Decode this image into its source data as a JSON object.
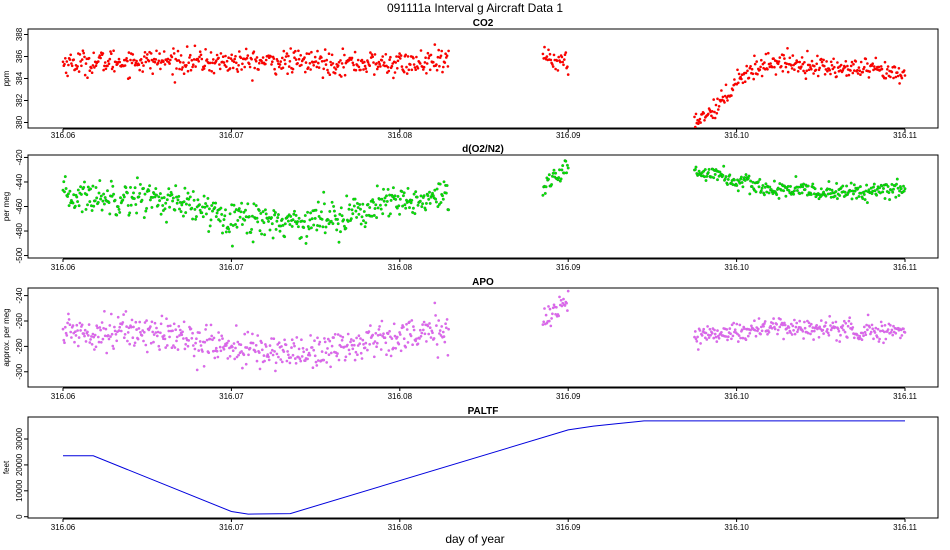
{
  "title": "091111a   Interval g Aircraft Data 1",
  "xlabel": "day of year",
  "chart_data": [
    {
      "type": "scatter",
      "title": "CO2",
      "ylabel": "ppm",
      "xlim": [
        316.06,
        316.11
      ],
      "ylim": [
        379.5,
        388.5
      ],
      "xticks": [
        316.06,
        316.07,
        316.08,
        316.09,
        316.1,
        316.11
      ],
      "xtick_labels": [
        "316.06",
        "316.07",
        "316.08",
        "316.09",
        "316.10",
        "316.11"
      ],
      "yticks": [
        380,
        382,
        384,
        386,
        388
      ],
      "ytick_labels": [
        "380",
        "382",
        "384",
        "386",
        "388"
      ],
      "color": "#ff0000",
      "segments": [
        {
          "x": [
            316.06,
            316.065,
            316.07,
            316.075,
            316.08,
            316.0829
          ],
          "y": [
            385.4,
            385.6,
            385.5,
            385.5,
            385.3,
            385.5
          ],
          "noise": 0.55
        },
        {
          "x": [
            316.0885,
            316.0893,
            316.09
          ],
          "y": [
            386.2,
            385.6,
            385.2
          ],
          "noise": 0.5
        },
        {
          "x": [
            316.0975,
            316.0985,
            316.0995,
            316.1,
            316.101,
            316.102,
            316.104,
            316.106,
            316.108,
            316.11
          ],
          "y": [
            380.2,
            381.0,
            382.6,
            384.0,
            384.8,
            385.5,
            385.3,
            384.9,
            384.8,
            384.2
          ],
          "noise": 0.45
        }
      ]
    },
    {
      "type": "scatter",
      "title": "d(O2/N2)",
      "ylabel": "per meg",
      "xlim": [
        316.06,
        316.11
      ],
      "ylim": [
        -502,
        -418
      ],
      "xticks": [
        316.06,
        316.07,
        316.08,
        316.09,
        316.1,
        316.11
      ],
      "xtick_labels": [
        "316.06",
        "316.07",
        "316.08",
        "316.09",
        "316.10",
        "316.11"
      ],
      "yticks": [
        -500,
        -480,
        -460,
        -440,
        -420
      ],
      "ytick_labels": [
        "-500",
        "-480",
        "-460",
        "-440",
        "-420"
      ],
      "color": "#00ee00",
      "segments": [
        {
          "x": [
            316.06,
            316.065,
            316.068,
            316.071,
            316.074,
            316.077,
            316.08,
            316.0829
          ],
          "y": [
            -452,
            -452,
            -462,
            -470,
            -473,
            -466,
            -456,
            -454
          ],
          "noise": 7
        },
        {
          "x": [
            316.0885,
            316.0893,
            316.09
          ],
          "y": [
            -448,
            -436,
            -428
          ],
          "noise": 4
        },
        {
          "x": [
            316.0975,
            316.099,
            316.1,
            316.102,
            316.105,
            316.108,
            316.11
          ],
          "y": [
            -431,
            -434,
            -440,
            -446,
            -448,
            -448,
            -446
          ],
          "noise": 3.5
        }
      ]
    },
    {
      "type": "scatter",
      "title": "APO",
      "ylabel": "approx. per meg",
      "xlim": [
        316.06,
        316.11
      ],
      "ylim": [
        -312,
        -234
      ],
      "xticks": [
        316.06,
        316.07,
        316.08,
        316.09,
        316.1,
        316.11
      ],
      "xtick_labels": [
        "316.06",
        "316.07",
        "316.08",
        "316.09",
        "316.10",
        "316.11"
      ],
      "yticks": [
        -300,
        -280,
        -260,
        -240
      ],
      "ytick_labels": [
        "-300",
        "-280",
        "-260",
        "-240"
      ],
      "color": "#dd66ee",
      "segments": [
        {
          "x": [
            316.06,
            316.065,
            316.068,
            316.071,
            316.074,
            316.077,
            316.08,
            316.0829
          ],
          "y": [
            -268,
            -268,
            -276,
            -283,
            -285,
            -280,
            -270,
            -270
          ],
          "noise": 7
        },
        {
          "x": [
            316.0885,
            316.0893,
            316.09
          ],
          "y": [
            -258,
            -250,
            -246
          ],
          "noise": 5
        },
        {
          "x": [
            316.0975,
            316.1,
            316.102,
            316.105,
            316.108,
            316.11
          ],
          "y": [
            -272,
            -268,
            -265,
            -266,
            -268,
            -268
          ],
          "noise": 4
        }
      ]
    },
    {
      "type": "line",
      "title": "PALTF",
      "ylabel": "feet",
      "xlim": [
        316.06,
        316.11
      ],
      "ylim": [
        -500,
        38500
      ],
      "xticks": [
        316.06,
        316.07,
        316.08,
        316.09,
        316.1,
        316.11
      ],
      "xtick_labels": [
        "316.06",
        "316.07",
        "316.08",
        "316.09",
        "316.10",
        "316.11"
      ],
      "yticks": [
        0,
        10000,
        20000,
        30000
      ],
      "ytick_labels": [
        "0",
        "10000",
        "20000",
        "30000"
      ],
      "color": "#0000dd",
      "x": [
        316.06,
        316.0618,
        316.07,
        316.071,
        316.0735,
        316.09,
        316.0915,
        316.093,
        316.0945,
        316.1,
        316.11
      ],
      "y": [
        23500,
        23500,
        2000,
        1000,
        1200,
        33500,
        35000,
        36000,
        37000,
        37000,
        37000
      ]
    }
  ]
}
